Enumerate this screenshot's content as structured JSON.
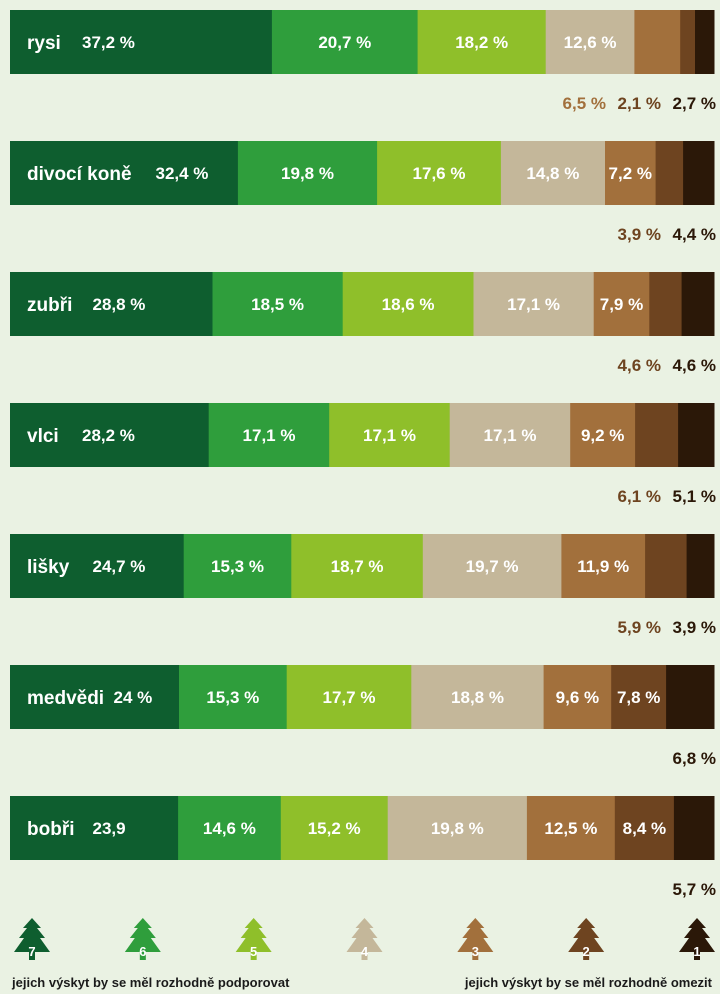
{
  "chart_data": {
    "type": "bar",
    "orientation": "horizontal",
    "stacked": true,
    "categories": [
      "rysi",
      "divocí koně",
      "zubři",
      "vlci",
      "lišky",
      "medvědi",
      "bobři"
    ],
    "series": [
      {
        "name": "7",
        "color": "#0e5e2f",
        "values": [
          37.2,
          32.4,
          28.8,
          28.2,
          24.7,
          24,
          23.9
        ],
        "labels": [
          "37,2 %",
          "32,4 %",
          "28,8 %",
          "28,2 %",
          "24,7 %",
          "24 %",
          "23,9"
        ]
      },
      {
        "name": "6",
        "color": "#2f9e3c",
        "values": [
          20.7,
          19.8,
          18.5,
          17.1,
          15.3,
          15.3,
          14.6
        ],
        "labels": [
          "20,7 %",
          "19,8 %",
          "18,5 %",
          "17,1 %",
          "15,3 %",
          "15,3 %",
          "14,6 %"
        ]
      },
      {
        "name": "5",
        "color": "#8fbf2a",
        "values": [
          18.2,
          17.6,
          18.6,
          17.1,
          18.7,
          17.7,
          15.2
        ],
        "labels": [
          "18,2 %",
          "17,6 %",
          "18,6 %",
          "17,1 %",
          "18,7 %",
          "17,7 %",
          "15,2 %"
        ]
      },
      {
        "name": "4",
        "color": "#c4b79a",
        "values": [
          12.6,
          14.8,
          17.1,
          17.1,
          19.7,
          18.8,
          19.8
        ],
        "labels": [
          "12,6 %",
          "14,8 %",
          "17,1 %",
          "17,1 %",
          "19,7 %",
          "18,8 %",
          "19,8 %"
        ]
      },
      {
        "name": "3",
        "color": "#a2703c",
        "values": [
          6.5,
          7.2,
          7.9,
          9.2,
          11.9,
          9.6,
          12.5
        ],
        "labels": [
          "6,5 %",
          "7,2 %",
          "7,9 %",
          "9,2 %",
          "11,9 %",
          "9,6 %",
          "12,5 %"
        ]
      },
      {
        "name": "2",
        "color": "#6e4420",
        "values": [
          2.1,
          3.9,
          4.6,
          6.1,
          5.9,
          7.8,
          8.4
        ],
        "labels": [
          "2,1 %",
          "3,9 %",
          "4,6 %",
          "6,1 %",
          "5,9 %",
          "7,8 %",
          "8,4 %"
        ]
      },
      {
        "name": "1",
        "color": "#2b1808",
        "values": [
          2.7,
          4.4,
          4.6,
          5.1,
          3.9,
          6.8,
          5.7
        ],
        "labels": [
          "2,7 %",
          "4,4 %",
          "4,6 %",
          "5,1 %",
          "3,9 %",
          "6,8 %",
          "5,7 %"
        ]
      }
    ],
    "legend": {
      "position": "bottom",
      "entries": [
        "7",
        "6",
        "5",
        "4",
        "3",
        "2",
        "1"
      ],
      "left_text": "jejich výskyt by se měl rozhodně podporovat",
      "right_text": "jejich výskyt by se měl rozhodně omezit"
    }
  }
}
